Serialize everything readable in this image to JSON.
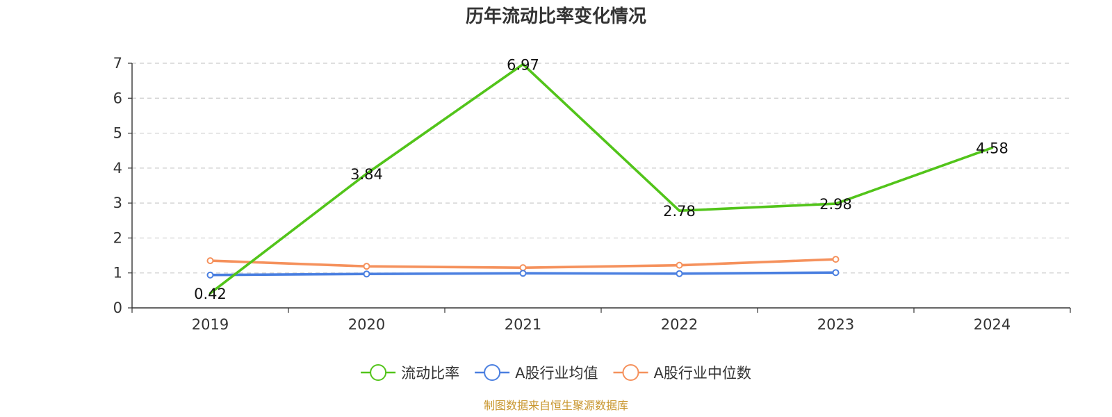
{
  "chart_data": {
    "type": "line",
    "title": "历年流动比率变化情况",
    "categories": [
      "2019",
      "2020",
      "2021",
      "2022",
      "2023",
      "2024"
    ],
    "ylim": [
      0,
      7
    ],
    "yticks": [
      0,
      1,
      2,
      3,
      4,
      5,
      6,
      7
    ],
    "grid": true,
    "legend_position": "bottom-center",
    "series": [
      {
        "name": "流动比率",
        "values": [
          0.42,
          3.84,
          6.97,
          2.78,
          2.98,
          4.58
        ],
        "labels": [
          "0.42",
          "3.84",
          "6.97",
          "2.78",
          "2.98",
          "4.58"
        ],
        "color": "#52c41a",
        "show_labels": true,
        "show_markers": false
      },
      {
        "name": "A股行业均值",
        "values": [
          0.94,
          0.97,
          0.99,
          0.98,
          1.01,
          null
        ],
        "color": "#4a7fe0",
        "show_labels": false,
        "show_markers": true
      },
      {
        "name": "A股行业中位数",
        "values": [
          1.35,
          1.19,
          1.15,
          1.22,
          1.39,
          null
        ],
        "color": "#f5915c",
        "show_labels": false,
        "show_markers": true
      }
    ],
    "source": "制图数据来自恒生聚源数据库"
  }
}
